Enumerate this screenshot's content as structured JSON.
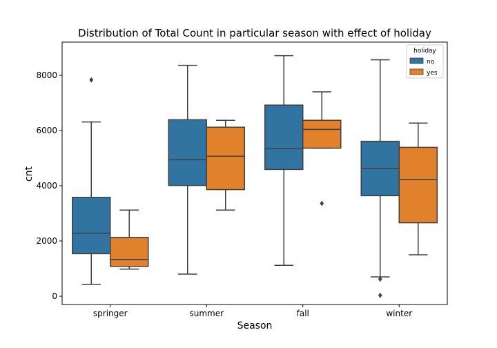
{
  "chart_data": {
    "type": "box",
    "title": "Distribution of Total Count in particular season with effect of holiday",
    "xlabel": "Season",
    "ylabel": "cnt",
    "ylim": [
      -300,
      9200
    ],
    "yticks": [
      0,
      2000,
      4000,
      6000,
      8000
    ],
    "categories": [
      "springer",
      "summer",
      "fall",
      "winter"
    ],
    "legend": {
      "title": "holiday",
      "position": "top-right"
    },
    "series": [
      {
        "name": "no",
        "color": "#3274a1",
        "boxes": [
          {
            "whisker_low": 431,
            "q1": 1540,
            "median": 2280,
            "q3": 3580,
            "whisker_high": 6310,
            "outliers": [
              7830
            ]
          },
          {
            "whisker_low": 800,
            "q1": 4010,
            "median": 4940,
            "q3": 6390,
            "whisker_high": 8360,
            "outliers": []
          },
          {
            "whisker_low": 1120,
            "q1": 4590,
            "median": 5340,
            "q3": 6920,
            "whisker_high": 8710,
            "outliers": []
          },
          {
            "whisker_low": 700,
            "q1": 3640,
            "median": 4630,
            "q3": 5610,
            "whisker_high": 8560,
            "outliers": [
              620,
              30
            ]
          }
        ]
      },
      {
        "name": "yes",
        "color": "#e1812c",
        "boxes": [
          {
            "whisker_low": 980,
            "q1": 1080,
            "median": 1330,
            "q3": 2130,
            "whisker_high": 3120,
            "outliers": []
          },
          {
            "whisker_low": 3120,
            "q1": 3860,
            "median": 5070,
            "q3": 6120,
            "whisker_high": 6370,
            "outliers": []
          },
          {
            "whisker_low": 5360,
            "q1": 5360,
            "median": 6040,
            "q3": 6370,
            "whisker_high": 7400,
            "outliers": [
              3360
            ]
          },
          {
            "whisker_low": 1500,
            "q1": 2660,
            "median": 4230,
            "q3": 5390,
            "whisker_high": 6270,
            "outliers": []
          }
        ]
      }
    ]
  }
}
